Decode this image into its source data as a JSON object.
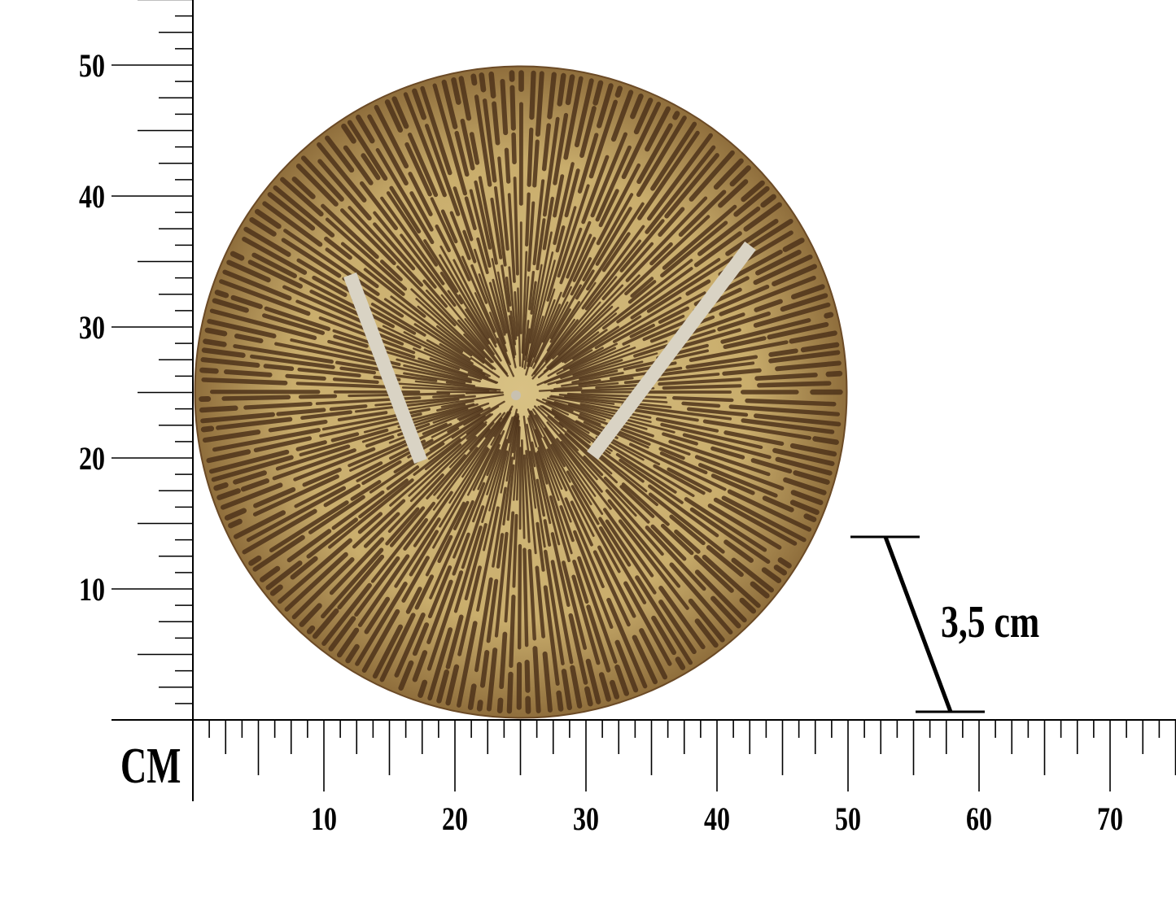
{
  "unit_label": "CM",
  "x_axis": {
    "ticks": [
      "10",
      "20",
      "30",
      "40",
      "50",
      "60",
      "70"
    ],
    "range_cm": [
      0,
      75
    ],
    "minor_step_cm": 1.25
  },
  "y_axis": {
    "ticks": [
      "10",
      "20",
      "30",
      "40",
      "50"
    ],
    "range_cm": [
      0,
      55
    ],
    "minor_step_cm": 1.25
  },
  "product": {
    "type": "wall clock",
    "diameter_cm": 50,
    "depth_label": "3,5 cm"
  },
  "colors": {
    "face_light": "#c9ad6c",
    "face_dark": "#4e321a",
    "hands": "#d9d3c4",
    "ink": "#000000"
  }
}
